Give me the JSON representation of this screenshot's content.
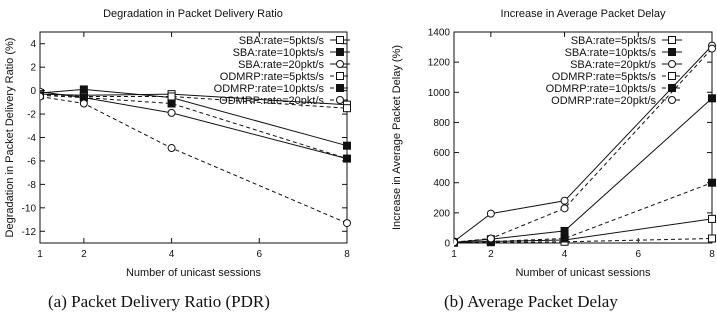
{
  "chart_data": [
    {
      "type": "line",
      "title": "Degradation in Packet Delivery Ratio",
      "xlabel": "Number of unicast sessions",
      "ylabel": "Degradation in Packet Delivery Ratio (%)",
      "x": [
        1,
        2,
        4,
        8
      ],
      "xlim": [
        1,
        8
      ],
      "ylim": [
        -13,
        5
      ],
      "xticks": [
        "1",
        "2",
        "4",
        "6",
        "8"
      ],
      "yticks": [
        "4",
        "2",
        "0",
        "-2",
        "-4",
        "-6",
        "-8",
        "-10",
        "-12"
      ],
      "grid": false,
      "legend_position": "top-right",
      "series": [
        {
          "name": "SBA:rate=5pkts/s",
          "marker": "open-square",
          "line": "solid",
          "values": [
            -0.3,
            -0.4,
            -0.3,
            -1.2
          ]
        },
        {
          "name": "SBA:rate=10pkts/s",
          "marker": "filled-square",
          "line": "solid",
          "values": [
            -0.2,
            0.1,
            -0.6,
            -4.7
          ]
        },
        {
          "name": "SBA:rate=20pkt/s",
          "marker": "open-circle",
          "line": "solid",
          "values": [
            -0.1,
            -0.6,
            -1.9,
            -5.8
          ]
        },
        {
          "name": "ODMRP:rate=5pkts/s",
          "marker": "open-square",
          "line": "dashed",
          "values": [
            -0.3,
            -0.5,
            -0.5,
            -1.5
          ]
        },
        {
          "name": "ODMRP:rate=10pkts/s",
          "marker": "filled-square",
          "line": "dashed",
          "values": [
            -0.4,
            -0.6,
            -1.1,
            -5.8
          ]
        },
        {
          "name": "ODMRP:rate=20pkt/s",
          "marker": "open-circle",
          "line": "dashed",
          "values": [
            -0.5,
            -1.1,
            -4.9,
            -11.3
          ]
        }
      ]
    },
    {
      "type": "line",
      "title": "Increase in Average Packet Delay",
      "xlabel": "Number of unicast sessions",
      "ylabel": "Increase in Average Packet Delay (%)",
      "x": [
        1,
        2,
        4,
        8
      ],
      "xlim": [
        1,
        8
      ],
      "ylim": [
        0,
        1400
      ],
      "xticks": [
        "1",
        "2",
        "4",
        "6",
        "8"
      ],
      "yticks": [
        "1400",
        "1200",
        "1000",
        "800",
        "600",
        "400",
        "200",
        "0"
      ],
      "grid": false,
      "legend_position": "top-left",
      "series": [
        {
          "name": "SBA:rate=5pkts/s",
          "marker": "open-square",
          "line": "solid",
          "values": [
            5,
            10,
            20,
            160
          ]
        },
        {
          "name": "SBA:rate=10pkts/s",
          "marker": "filled-square",
          "line": "solid",
          "values": [
            5,
            25,
            80,
            960
          ]
        },
        {
          "name": "SBA:rate=20pkt/s",
          "marker": "open-circle",
          "line": "solid",
          "values": [
            10,
            195,
            280,
            1310
          ]
        },
        {
          "name": "ODMRP:rate=5pkts/s",
          "marker": "open-square",
          "line": "dashed",
          "values": [
            2,
            5,
            8,
            30
          ]
        },
        {
          "name": "ODMRP:rate=10pkts/s",
          "marker": "filled-square",
          "line": "dashed",
          "values": [
            3,
            10,
            30,
            400
          ]
        },
        {
          "name": "ODMRP:rate=20pkt/s",
          "marker": "open-circle",
          "line": "dashed",
          "values": [
            5,
            30,
            230,
            1290
          ]
        }
      ]
    }
  ],
  "captions": {
    "a": "(a)  Packet Delivery Ratio (PDR)",
    "b": "(b)  Average Packet Delay"
  }
}
